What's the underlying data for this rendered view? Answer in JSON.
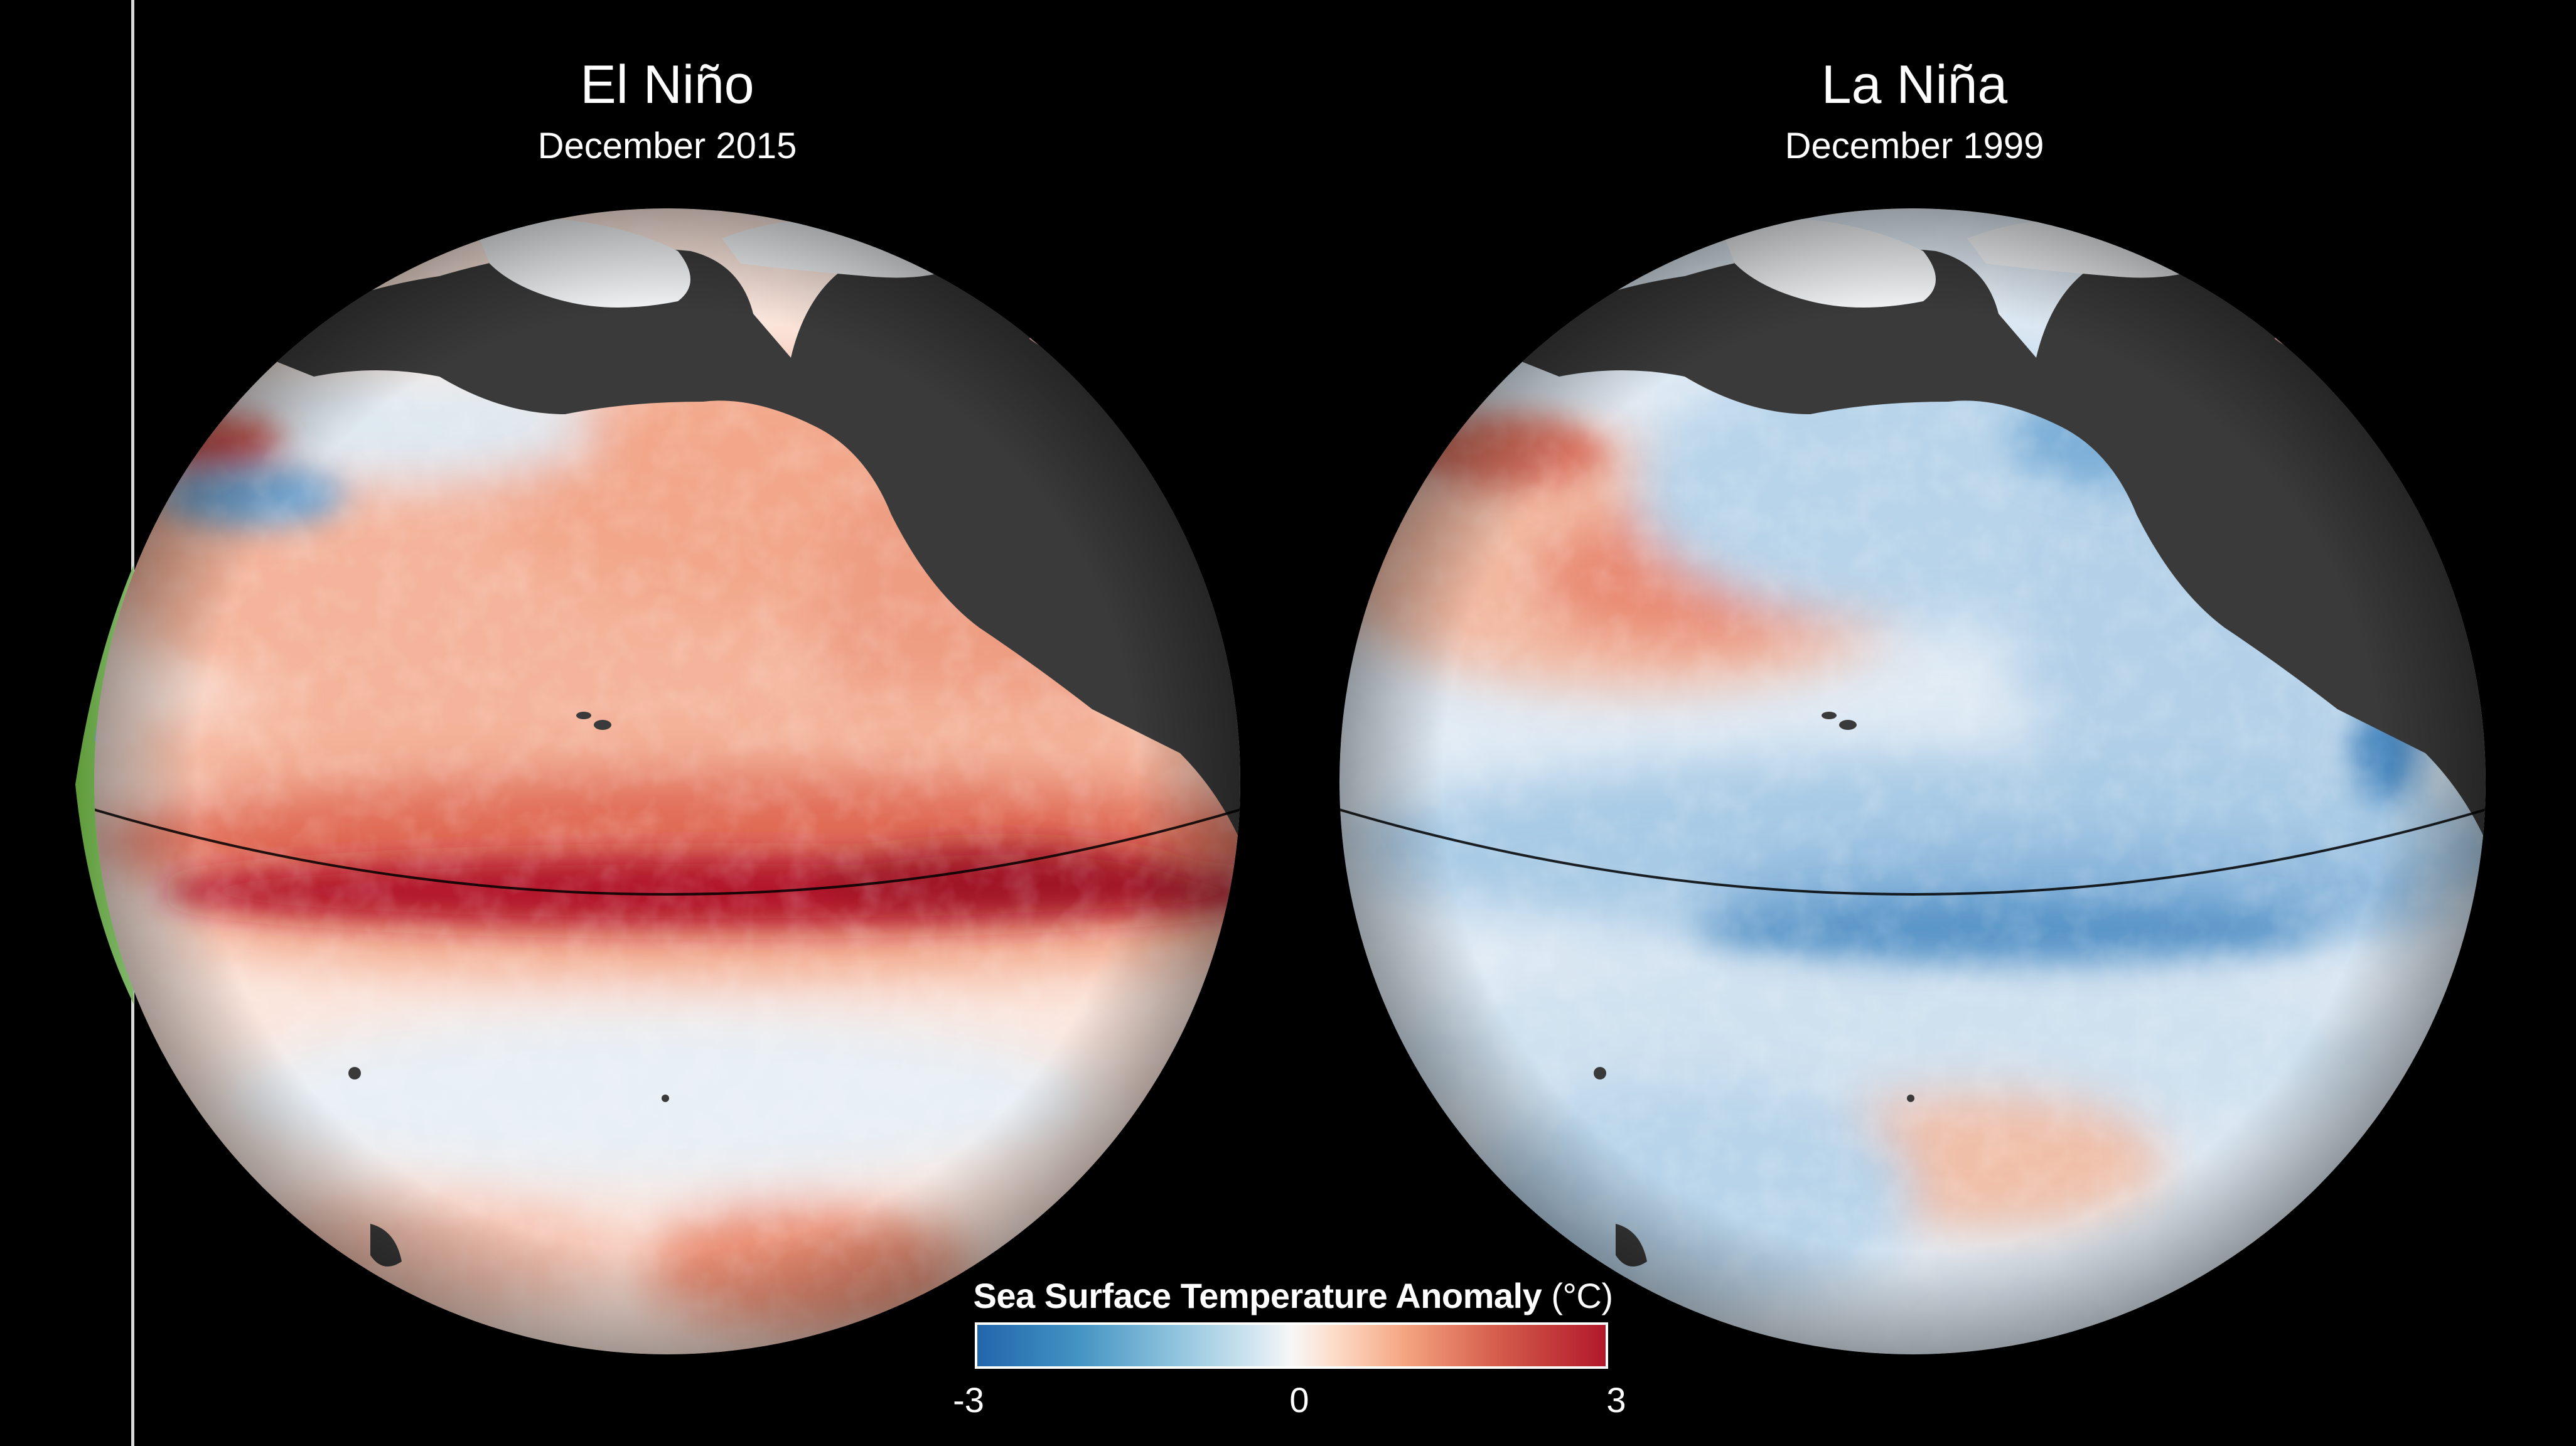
{
  "panels": [
    {
      "title": "El Niño",
      "subtitle": "December 2015",
      "anomaly": "warm"
    },
    {
      "title": "La Niña",
      "subtitle": "December 1999",
      "anomaly": "cool"
    }
  ],
  "legend": {
    "title": "Sea Surface Temperature Anomaly",
    "unit": "(°C)",
    "min_label": "-3",
    "mid_label": "0",
    "max_label": "3",
    "colors": [
      "#2166ac",
      "#4393c3",
      "#92c5de",
      "#d1e5f0",
      "#f7f7f7",
      "#fddbc7",
      "#f4a582",
      "#d6604d",
      "#b2182b"
    ]
  },
  "colors": {
    "background": "#000000",
    "land": "#3a3a3a",
    "ice": "#f2f4f6",
    "warm_strong": "#b2182b",
    "warm": "#f4a582",
    "cool": "#92c5de",
    "cool_strong": "#2166ac"
  }
}
